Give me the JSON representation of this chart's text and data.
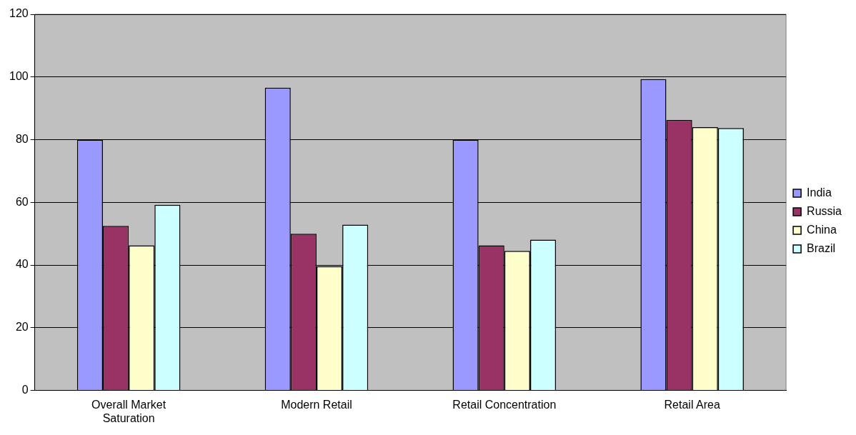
{
  "chart_data": {
    "type": "bar",
    "categories": [
      "Overall Market Saturation",
      "Modern Retail",
      "Retail Concentration",
      "Retail Area"
    ],
    "series": [
      {
        "name": "India",
        "color": "#9999ff",
        "values": [
          80,
          96.6,
          80,
          99.3
        ]
      },
      {
        "name": "Russia",
        "color": "#993366",
        "values": [
          52.5,
          50,
          46.3,
          86.3
        ]
      },
      {
        "name": "China",
        "color": "#ffffcc",
        "values": [
          46.3,
          39.6,
          44.5,
          84
        ]
      },
      {
        "name": "Brazil",
        "color": "#ccffff",
        "values": [
          59.2,
          52.9,
          48.1,
          83.7
        ]
      }
    ],
    "ylim": [
      0,
      120
    ],
    "yticks": [
      0,
      20,
      40,
      60,
      80,
      100,
      120
    ],
    "grid": "y",
    "legend": "right"
  }
}
